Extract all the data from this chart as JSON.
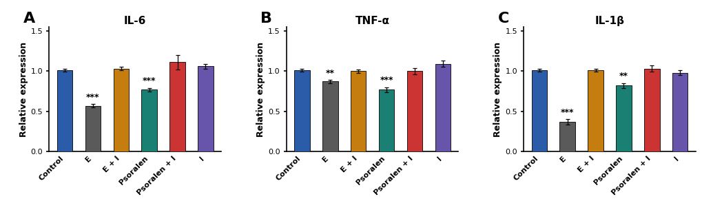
{
  "panels": [
    {
      "label": "A",
      "title": "IL-6",
      "categories": [
        "Control",
        "E",
        "E + I",
        "Psoralen",
        "Psoralen + I",
        "I"
      ],
      "values": [
        1.01,
        0.57,
        1.03,
        0.77,
        1.11,
        1.06
      ],
      "errors": [
        0.02,
        0.02,
        0.02,
        0.02,
        0.09,
        0.03
      ],
      "significance": [
        "",
        "***",
        "",
        "***",
        "",
        ""
      ],
      "bar_colors": [
        "#2a5caa",
        "#5a5a5a",
        "#c47d0e",
        "#1a8073",
        "#cc3333",
        "#6655aa"
      ]
    },
    {
      "label": "B",
      "title": "TNF-α",
      "categories": [
        "Control",
        "E",
        "E + I",
        "Psoralen",
        "Psoralen + I",
        "I"
      ],
      "values": [
        1.01,
        0.87,
        1.0,
        0.77,
        1.0,
        1.09
      ],
      "errors": [
        0.02,
        0.02,
        0.02,
        0.03,
        0.04,
        0.04
      ],
      "significance": [
        "",
        "**",
        "",
        "***",
        "",
        ""
      ],
      "bar_colors": [
        "#2a5caa",
        "#5a5a5a",
        "#c47d0e",
        "#1a8073",
        "#cc3333",
        "#6655aa"
      ]
    },
    {
      "label": "C",
      "title": "IL-1β",
      "categories": [
        "Control",
        "E",
        "E + I",
        "Psoralen",
        "Psoralen + I",
        "I"
      ],
      "values": [
        1.01,
        0.37,
        1.01,
        0.82,
        1.03,
        0.98
      ],
      "errors": [
        0.02,
        0.03,
        0.02,
        0.03,
        0.04,
        0.03
      ],
      "significance": [
        "",
        "***",
        "",
        "**",
        "",
        ""
      ],
      "bar_colors": [
        "#2a5caa",
        "#5a5a5a",
        "#c47d0e",
        "#1a8073",
        "#cc3333",
        "#6655aa"
      ]
    }
  ],
  "ylabel": "Relative expression",
  "ylim": [
    0,
    1.55
  ],
  "yticks": [
    0,
    0.5,
    1.0,
    1.5
  ],
  "background_color": "#ffffff",
  "sig_fontsize": 9,
  "title_fontsize": 11,
  "panel_label_fontsize": 16,
  "tick_fontsize": 8,
  "ylabel_fontsize": 9,
  "bar_width": 0.55
}
